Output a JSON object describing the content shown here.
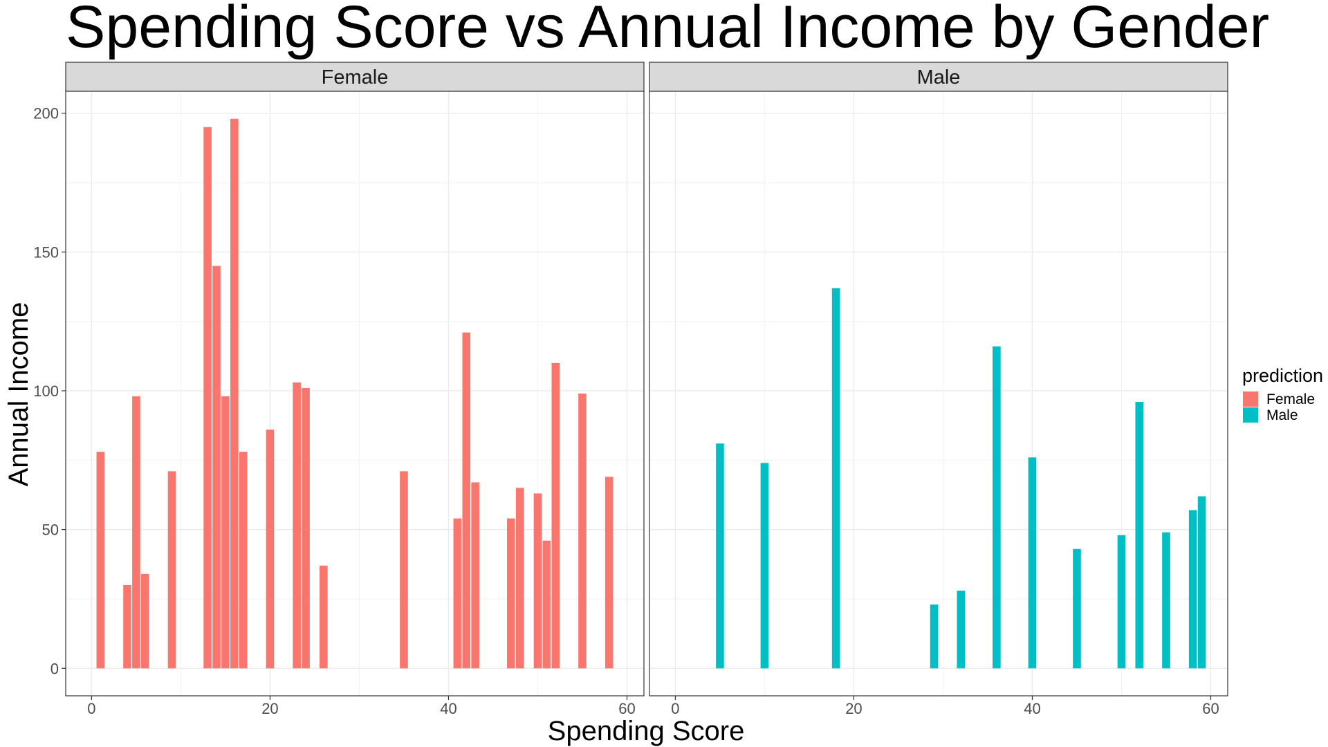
{
  "chart_data": {
    "type": "bar",
    "title": "Spending Score vs Annual Income by Gender",
    "xlabel": "Spending Score",
    "ylabel": "Annual Income",
    "xlim": [
      -2.9,
      61.9
    ],
    "ylim": [
      -9.9,
      207.9
    ],
    "x_ticks": [
      0,
      20,
      40,
      60
    ],
    "y_ticks": [
      0,
      50,
      100,
      150,
      200
    ],
    "grid": true,
    "legend": {
      "title": "prediction",
      "position": "right",
      "entries": [
        {
          "label": "Female",
          "color": "#F8766D"
        },
        {
          "label": "Male",
          "color": "#00BFC4"
        }
      ]
    },
    "panels": [
      {
        "label": "Female",
        "color": "#F8766D",
        "x": [
          1,
          4,
          5,
          6,
          9,
          13,
          14,
          15,
          16,
          17,
          20,
          23,
          24,
          26,
          35,
          41,
          42,
          43,
          47,
          48,
          50,
          51,
          52,
          55,
          58
        ],
        "y": [
          78,
          30,
          98,
          34,
          71,
          195,
          145,
          98,
          198,
          78,
          86,
          103,
          101,
          37,
          71,
          54,
          121,
          67,
          54,
          65,
          63,
          46,
          110,
          99,
          69
        ]
      },
      {
        "label": "Male",
        "color": "#00BFC4",
        "x": [
          5,
          10,
          18,
          29,
          32,
          36,
          40,
          45,
          50,
          52,
          55,
          58,
          59
        ],
        "y": [
          81,
          74,
          137,
          23,
          28,
          116,
          76,
          43,
          48,
          96,
          49,
          57,
          62
        ]
      }
    ]
  }
}
